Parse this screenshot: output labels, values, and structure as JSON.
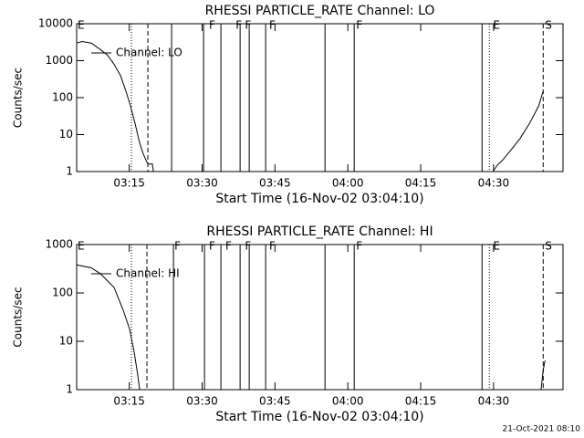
{
  "chart_data": [
    {
      "type": "line",
      "title": "RHESSI PARTICLE_RATE Channel: LO",
      "xlabel": "Start Time (16-Nov-02 03:04:10)",
      "ylabel": "Counts/sec",
      "ylog": true,
      "ylim": [
        1,
        10000
      ],
      "yticks": [
        1,
        10,
        100,
        1000,
        10000
      ],
      "xlim": [
        184.17,
        284.3
      ],
      "xticks": [
        {
          "value": 195,
          "label": "03:15"
        },
        {
          "value": 210,
          "label": "03:30"
        },
        {
          "value": 225,
          "label": "03:45"
        },
        {
          "value": 240,
          "label": "04:00"
        },
        {
          "value": 255,
          "label": "04:15"
        },
        {
          "value": 270,
          "label": "04:30"
        }
      ],
      "series": [
        {
          "name": "Channel: LO",
          "color": "#000000",
          "x": [
            184.17,
            185.3,
            187.18,
            189.06,
            190.56,
            191.88,
            193.19,
            194.32,
            195.26,
            196.2,
            197.14,
            197.89,
            198.64,
            199.02,
            199.77,
            199.96,
            230,
            269.9,
            270.8,
            271.8,
            273.7,
            275.5,
            277.4,
            279.3,
            280.2
          ],
          "values": [
            3000,
            3300,
            3000,
            2000,
            1400,
            800,
            400,
            150,
            60,
            20,
            6,
            3,
            1.8,
            1.6,
            1.6,
            1,
            null,
            1,
            1.5,
            2,
            4,
            8,
            20,
            60,
            150
          ]
        }
      ],
      "vlines": [
        {
          "x": 195.45,
          "style": "dotted"
        },
        {
          "x": 198.83,
          "style": "dashed"
        },
        {
          "x": 203.72,
          "style": "solid"
        },
        {
          "x": 210.3,
          "style": "solid"
        },
        {
          "x": 213.87,
          "style": "solid"
        },
        {
          "x": 217.82,
          "style": "solid"
        },
        {
          "x": 219.7,
          "style": "solid"
        },
        {
          "x": 223.08,
          "style": "solid"
        },
        {
          "x": 235.3,
          "style": "solid"
        },
        {
          "x": 241.31,
          "style": "solid"
        },
        {
          "x": 267.63,
          "style": "solid"
        },
        {
          "x": 269.13,
          "style": "dotted"
        },
        {
          "x": 280.22,
          "style": "dashed"
        }
      ],
      "flags": [
        {
          "x": 184.36,
          "label": "E"
        },
        {
          "x": 211.4,
          "label": "F"
        },
        {
          "x": 216.9,
          "label": "F"
        },
        {
          "x": 218.8,
          "label": "F"
        },
        {
          "x": 223.8,
          "label": "F"
        },
        {
          "x": 241.7,
          "label": "F"
        },
        {
          "x": 269.9,
          "label": "E"
        },
        {
          "x": 280.6,
          "label": "S"
        }
      ]
    },
    {
      "type": "line",
      "title": "RHESSI PARTICLE_RATE Channel: HI",
      "xlabel": "Start Time (16-Nov-02 03:04:10)",
      "ylabel": "Counts/sec",
      "ylog": true,
      "ylim": [
        1,
        1000
      ],
      "yticks": [
        1,
        10,
        100,
        1000
      ],
      "xlim": [
        184.17,
        284.3
      ],
      "xticks": [
        {
          "value": 195,
          "label": "03:15"
        },
        {
          "value": 210,
          "label": "03:30"
        },
        {
          "value": 225,
          "label": "03:45"
        },
        {
          "value": 240,
          "label": "04:00"
        },
        {
          "value": 255,
          "label": "04:15"
        },
        {
          "value": 270,
          "label": "04:30"
        }
      ],
      "series": [
        {
          "name": "Channel: HI",
          "color": "#000000",
          "x": [
            184.17,
            185.3,
            187.18,
            189.06,
            191.88,
            193.75,
            195.07,
            196.01,
            196.76,
            197.14,
            230,
            279.8,
            280.2,
            280.6
          ],
          "values": [
            380,
            360,
            330,
            250,
            130,
            44,
            18,
            6,
            2,
            1,
            null,
            1,
            2.5,
            4
          ]
        }
      ],
      "vlines": [
        {
          "x": 195.45,
          "style": "dotted"
        },
        {
          "x": 198.64,
          "style": "dashed"
        },
        {
          "x": 204.1,
          "style": "solid"
        },
        {
          "x": 210.49,
          "style": "solid"
        },
        {
          "x": 213.87,
          "style": "solid"
        },
        {
          "x": 217.82,
          "style": "solid"
        },
        {
          "x": 219.7,
          "style": "solid"
        },
        {
          "x": 223.08,
          "style": "solid"
        },
        {
          "x": 235.3,
          "style": "solid"
        },
        {
          "x": 241.31,
          "style": "solid"
        },
        {
          "x": 267.63,
          "style": "solid"
        },
        {
          "x": 269.13,
          "style": "dotted"
        },
        {
          "x": 280.22,
          "style": "dashed"
        }
      ],
      "flags": [
        {
          "x": 184.36,
          "label": "E"
        },
        {
          "x": 204.3,
          "label": "F"
        },
        {
          "x": 211.4,
          "label": "F"
        },
        {
          "x": 214.8,
          "label": "F"
        },
        {
          "x": 218.8,
          "label": "F"
        },
        {
          "x": 223.8,
          "label": "F"
        },
        {
          "x": 241.7,
          "label": "F"
        },
        {
          "x": 269.9,
          "label": "E"
        },
        {
          "x": 280.6,
          "label": "S"
        }
      ]
    }
  ],
  "footer": "21-Oct-2021 08:10"
}
